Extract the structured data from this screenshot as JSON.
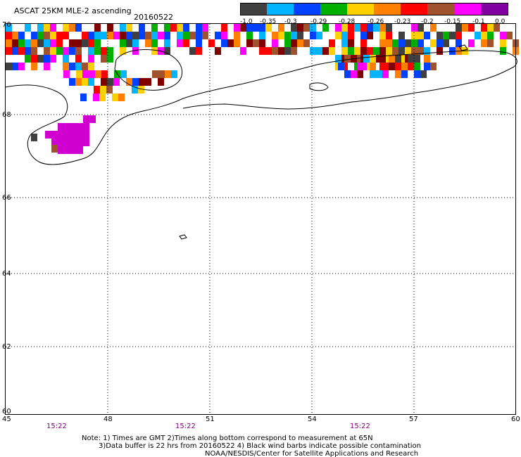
{
  "header": {
    "title": "ASCAT 25KM MLE-2 ascending",
    "date": "20160522"
  },
  "legend": {
    "colors": [
      "#404040",
      "#00b4ff",
      "#0040ff",
      "#00b000",
      "#ffd000",
      "#ff8000",
      "#ff0000",
      "#a0522d",
      "#ff00ff",
      "#8000a0"
    ],
    "labels": [
      "-1.0",
      "-0.35",
      "-0.3",
      "-0.29",
      "-0.28",
      "-0.26",
      "-0.23",
      "-0.2",
      "-0.15",
      "-0.1",
      "0.0"
    ]
  },
  "map": {
    "lat_labels": [
      "70",
      "68",
      "66",
      "64",
      "62",
      "60"
    ],
    "lon_labels": [
      "45",
      "48",
      "51",
      "54",
      "57",
      "60"
    ],
    "time_labels": [
      "15:22",
      "15:22",
      "15:22"
    ],
    "cell_palette": [
      "#ff0000",
      "#ff8000",
      "#ffd000",
      "#00b000",
      "#0040ff",
      "#00b4ff",
      "#ff00ff",
      "#a0522d",
      "#404040",
      "#800000"
    ],
    "purple_blob_color": "#d000d0"
  },
  "notes": {
    "line1": "Note: 1) Times are GMT 2)Times along bottom correspond to measurement at 65N",
    "line2": "3)Data buffer is 22 hrs from 20160522 4) Black wind barbs indicate possible contamination",
    "line3": "NOAA/NESDIS/Center for Satellite Applications and Research"
  }
}
